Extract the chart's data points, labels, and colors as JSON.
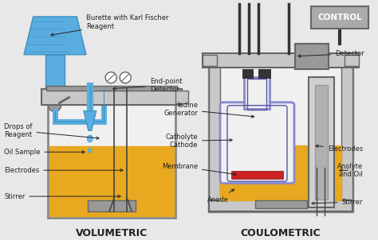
{
  "background_color": "#f0f0f0",
  "vol_label": "VOLUMETRIC",
  "coul_label": "COULOMETRIC",
  "control_label": "CONTROL",
  "colors": {
    "background": "#e8e8e8",
    "burette_blue": "#5aade0",
    "burette_blue_dark": "#4090c0",
    "oil_yellow": "#e8a820",
    "oil_yellow_dark": "#c88010",
    "vessel_gray": "#c8c8c8",
    "vessel_light": "#f0f0f0",
    "vessel_dark": "#888888",
    "metal_dark": "#666666",
    "metal_mid": "#999999",
    "metal_light": "#bbbbbb",
    "purple_inner": "#8888cc",
    "purple_dark": "#5555aa",
    "red_membrane": "#cc2222",
    "dark_gray": "#444444",
    "text_color": "#222222",
    "drop_blue": "#66bbee",
    "control_bg": "#aaaaaa",
    "detector_gray": "#999999",
    "white": "#ffffff",
    "tube_dark": "#333333"
  }
}
